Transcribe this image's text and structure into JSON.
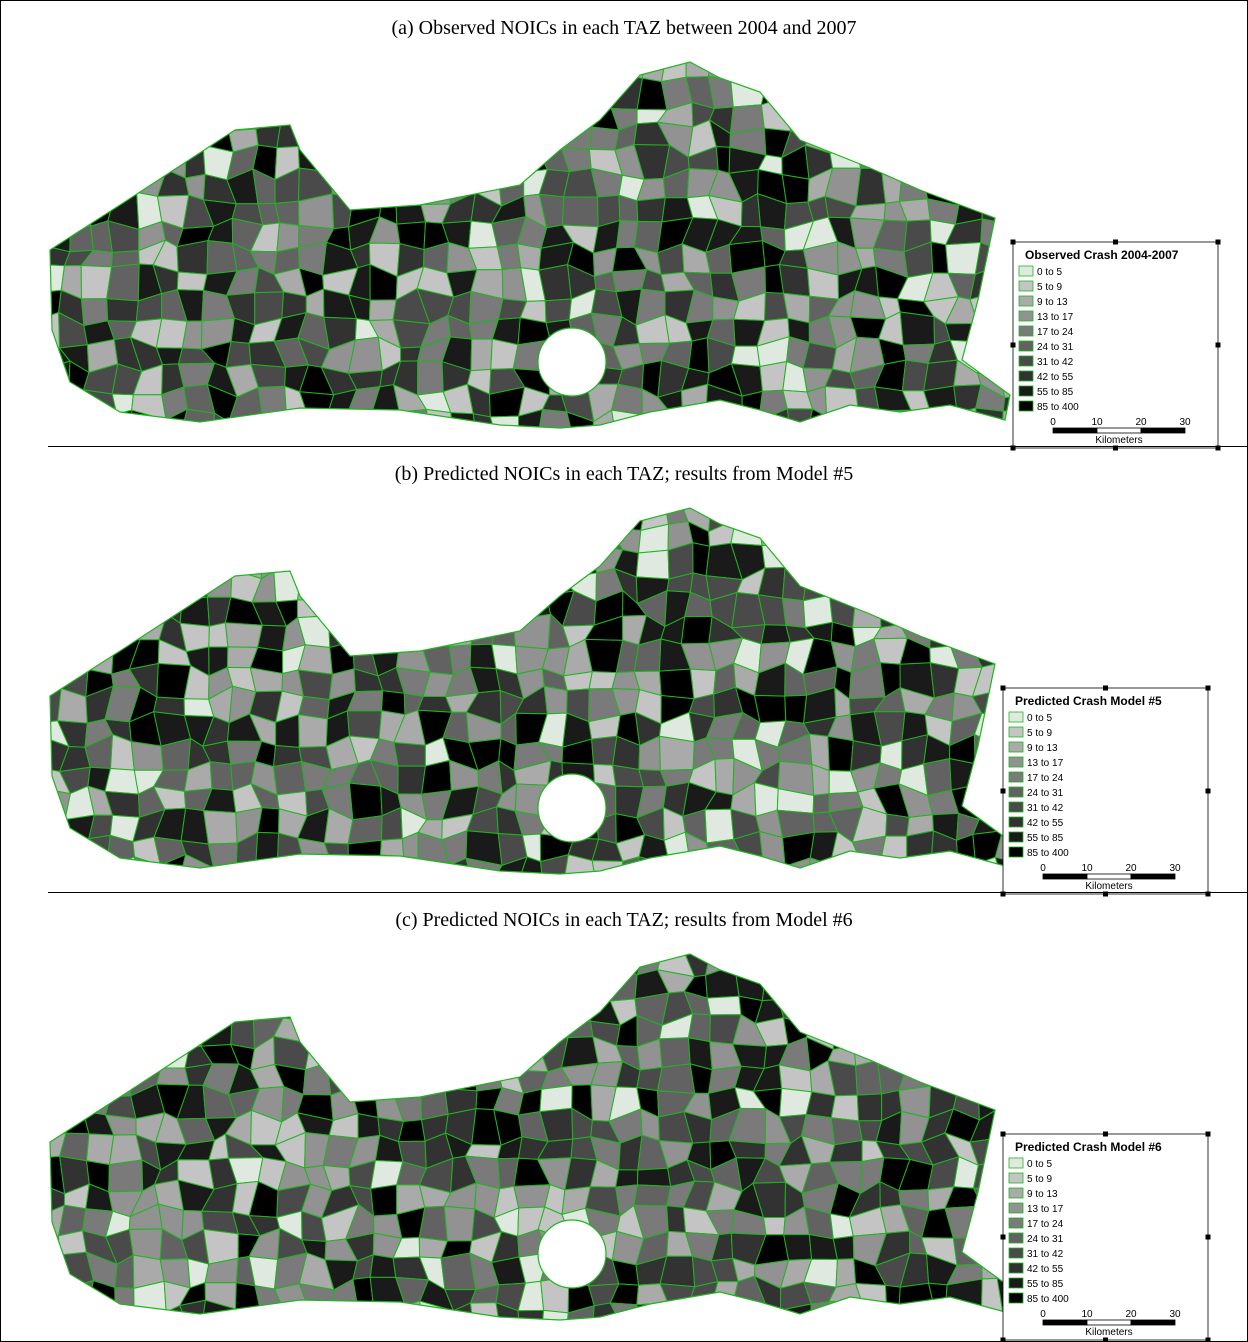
{
  "panels": [
    {
      "title": "(a)  Observed NOICs in each TAZ between 2004 and 2007",
      "legend": {
        "title": "Observed Crash 2004-2007",
        "classes": [
          {
            "label": "0 to 5",
            "color": "#dfe9df"
          },
          {
            "label": "5 to 9",
            "color": "#c4c4c4"
          },
          {
            "label": "9 to 13",
            "color": "#aaaaaa"
          },
          {
            "label": "13 to 17",
            "color": "#929292"
          },
          {
            "label": "17 to 24",
            "color": "#7a7a7a"
          },
          {
            "label": "24 to 31",
            "color": "#626262"
          },
          {
            "label": "31 to 42",
            "color": "#4a4a4a"
          },
          {
            "label": "42 to 55",
            "color": "#323232"
          },
          {
            "label": "55 to 85",
            "color": "#1a1a1a"
          },
          {
            "label": "85 to 400",
            "color": "#000000"
          }
        ]
      },
      "scale": {
        "ticks": [
          0,
          10,
          20,
          30
        ],
        "unit": "Kilometers"
      }
    },
    {
      "title": "(b)  Predicted NOICs in each TAZ; results from Model #5",
      "legend": {
        "title": "Predicted Crash Model #5",
        "classes": [
          {
            "label": "0 to 5",
            "color": "#dfe9df"
          },
          {
            "label": "5 to 9",
            "color": "#c4c4c4"
          },
          {
            "label": "9 to 13",
            "color": "#aaaaaa"
          },
          {
            "label": "13 to 17",
            "color": "#929292"
          },
          {
            "label": "17 to 24",
            "color": "#7a7a7a"
          },
          {
            "label": "24 to 31",
            "color": "#626262"
          },
          {
            "label": "31 to 42",
            "color": "#4a4a4a"
          },
          {
            "label": "42 to 55",
            "color": "#323232"
          },
          {
            "label": "55 to 85",
            "color": "#1a1a1a"
          },
          {
            "label": "85 to 400",
            "color": "#000000"
          }
        ]
      },
      "scale": {
        "ticks": [
          0,
          10,
          20,
          30
        ],
        "unit": "Kilometers"
      }
    },
    {
      "title": "(c)  Predicted NOICs in each TAZ; results from Model #6",
      "legend": {
        "title": "Predicted Crash Model #6",
        "classes": [
          {
            "label": "0 to 5",
            "color": "#dfe9df"
          },
          {
            "label": "5 to 9",
            "color": "#c4c4c4"
          },
          {
            "label": "9 to 13",
            "color": "#aaaaaa"
          },
          {
            "label": "13 to 17",
            "color": "#929292"
          },
          {
            "label": "17 to 24",
            "color": "#7a7a7a"
          },
          {
            "label": "24 to 31",
            "color": "#626262"
          },
          {
            "label": "31 to 42",
            "color": "#4a4a4a"
          },
          {
            "label": "42 to 55",
            "color": "#323232"
          },
          {
            "label": "55 to 85",
            "color": "#1a1a1a"
          },
          {
            "label": "85 to 400",
            "color": "#000000"
          }
        ]
      },
      "scale": {
        "ticks": [
          0,
          10,
          20,
          30
        ],
        "unit": "Kilometers"
      }
    }
  ]
}
